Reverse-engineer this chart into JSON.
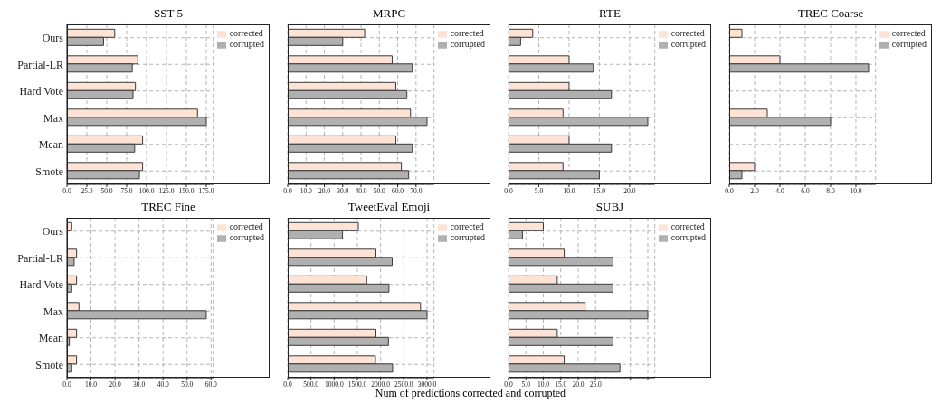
{
  "chart_data": [
    {
      "type": "bar",
      "orientation": "horizontal",
      "title": "SST-5",
      "categories": [
        "Ours",
        "Partial-LR",
        "Hard Vote",
        "Max",
        "Mean",
        "Smote"
      ],
      "series": [
        {
          "name": "corrected",
          "color": "#fde3d5",
          "values": [
            60,
            89,
            86,
            164,
            95,
            95
          ]
        },
        {
          "name": "corrupted",
          "color": "#b0b0b0",
          "values": [
            46,
            82,
            83,
            175,
            85,
            91
          ]
        }
      ],
      "xlim": [
        0,
        183.75
      ],
      "xticks": [
        {
          "value": 0,
          "label": "0.0"
        },
        {
          "value": 25,
          "label": "25.0"
        },
        {
          "value": 50,
          "label": "50.0"
        },
        {
          "value": 75,
          "label": "75.0"
        },
        {
          "value": 100,
          "label": "100.0"
        },
        {
          "value": 125,
          "label": "125.0"
        },
        {
          "value": 150,
          "label": "150.0"
        },
        {
          "value": 175,
          "label": "175.0"
        }
      ],
      "grid": true,
      "legend": "top right"
    },
    {
      "type": "bar",
      "orientation": "horizontal",
      "title": "MRPC",
      "categories": [
        null,
        null,
        null,
        null,
        null,
        null
      ],
      "series": [
        {
          "name": "corrected",
          "color": "#fde3d5",
          "values": [
            42,
            57,
            59,
            67,
            59,
            62
          ]
        },
        {
          "name": "corrupted",
          "color": "#b0b0b0",
          "values": [
            30,
            68,
            65,
            76,
            68,
            66
          ]
        }
      ],
      "xlim": [
        0,
        79.8
      ],
      "xticks": [
        {
          "value": 0,
          "label": "0.0"
        },
        {
          "value": 10,
          "label": "10.0"
        },
        {
          "value": 20,
          "label": "20.0"
        },
        {
          "value": 30,
          "label": "30.0"
        },
        {
          "value": 40,
          "label": "40.0"
        },
        {
          "value": 50,
          "label": "50.0"
        },
        {
          "value": 60,
          "label": "60.0"
        },
        {
          "value": 70,
          "label": "70.0"
        }
      ],
      "grid": true,
      "legend": "top right",
      "tick_labels": "x"
    },
    {
      "type": "bar",
      "orientation": "horizontal",
      "title": "RTE",
      "categories": [
        null,
        null,
        null,
        null,
        null,
        null
      ],
      "series": [
        {
          "name": "corrected",
          "color": "#fde3d5",
          "values": [
            4,
            10,
            10,
            9,
            10,
            9
          ]
        },
        {
          "name": "corrupted",
          "color": "#b0b0b0",
          "values": [
            2,
            14,
            17,
            23,
            17,
            15
          ]
        }
      ],
      "xlim": [
        0,
        24.15
      ],
      "xticks": [
        {
          "value": 0,
          "label": "0.0"
        },
        {
          "value": 5,
          "label": "5.0"
        },
        {
          "value": 10,
          "label": "10.0"
        },
        {
          "value": 15,
          "label": "15.0"
        },
        {
          "value": 20,
          "label": "20.0"
        }
      ],
      "grid": true,
      "legend": "top right",
      "tick_labels": "x"
    },
    {
      "type": "bar",
      "orientation": "horizontal",
      "title": "TREC Coarse",
      "categories": [
        null,
        null,
        null,
        null,
        null,
        null
      ],
      "series": [
        {
          "name": "corrected",
          "color": "#fde3d5",
          "values": [
            1,
            4,
            0,
            3,
            0,
            2
          ]
        },
        {
          "name": "corrupted",
          "color": "#b0b0b0",
          "values": [
            0,
            11,
            0,
            8,
            0,
            1
          ]
        }
      ],
      "xlim": [
        0,
        11.55
      ],
      "xticks": [
        {
          "value": 0,
          "label": "0.0"
        },
        {
          "value": 2,
          "label": "2.0"
        },
        {
          "value": 4,
          "label": "4.0"
        },
        {
          "value": 6,
          "label": "6.0"
        },
        {
          "value": 8,
          "label": "8.0"
        },
        {
          "value": 10,
          "label": "10.0"
        }
      ],
      "grid": true,
      "legend": "top right",
      "tick_labels": "x"
    },
    {
      "type": "bar",
      "orientation": "horizontal",
      "title": "TREC Fine",
      "categories": [
        "Ours",
        "Partial-LR",
        "Hard Vote",
        "Max",
        "Mean",
        "Smote"
      ],
      "series": [
        {
          "name": "corrected",
          "color": "#fde3d5",
          "values": [
            2,
            4,
            4,
            5,
            4,
            4
          ]
        },
        {
          "name": "corrupted",
          "color": "#b0b0b0",
          "values": [
            0,
            3,
            2,
            58,
            1,
            2
          ]
        }
      ],
      "xlim": [
        0,
        60.9
      ],
      "xticks": [
        {
          "value": 0,
          "label": "0.0"
        },
        {
          "value": 10,
          "label": "10.0"
        },
        {
          "value": 20,
          "label": "20.0"
        },
        {
          "value": 30,
          "label": "30.0"
        },
        {
          "value": 40,
          "label": "40.0"
        },
        {
          "value": 50,
          "label": "50.0"
        },
        {
          "value": 60,
          "label": "60.0"
        }
      ],
      "grid": true,
      "legend": "top right"
    },
    {
      "type": "bar",
      "orientation": "horizontal",
      "title": "TweetEval Emoji",
      "xlabel": "Num of predictions corrected and corrupted",
      "categories": [
        null,
        null,
        null,
        null,
        null,
        null
      ],
      "series": [
        {
          "name": "corrected",
          "color": "#fde3d5",
          "values": [
            1520,
            1900,
            1700,
            2860,
            1900,
            1890
          ]
        },
        {
          "name": "corrupted",
          "color": "#b0b0b0",
          "values": [
            1180,
            2250,
            2180,
            3000,
            2170,
            2260
          ]
        }
      ],
      "xlim": [
        0,
        3150
      ],
      "xticks": [
        {
          "value": 0,
          "label": "0.0"
        },
        {
          "value": 500,
          "label": "500.0"
        },
        {
          "value": 1000,
          "label": "1000.0"
        },
        {
          "value": 1500,
          "label": "1500.0"
        },
        {
          "value": 2000,
          "label": "2000.0"
        },
        {
          "value": 2500,
          "label": "2500.0"
        },
        {
          "value": 3000,
          "label": "3000.0"
        }
      ],
      "grid": true,
      "legend": "top right",
      "tick_labels": "x"
    },
    {
      "type": "bar",
      "orientation": "horizontal",
      "title": "SUBJ",
      "categories": [
        null,
        null,
        null,
        null,
        null,
        null
      ],
      "series": [
        {
          "name": "corrected",
          "color": "#fde3d5",
          "values": [
            10,
            16,
            14,
            22,
            14,
            16
          ]
        },
        {
          "name": "corrupted",
          "color": "#b0b0b0",
          "values": [
            4,
            30,
            30,
            40,
            30,
            32
          ]
        }
      ],
      "xlim": [
        0,
        42
      ],
      "xticks": [
        {
          "value": 0,
          "label": "0.0"
        },
        {
          "value": 5,
          "label": "5.0"
        },
        {
          "value": 10,
          "label": "10.0"
        },
        {
          "value": 15,
          "label": "15.0"
        },
        {
          "value": 20,
          "label": "20.0"
        },
        {
          "value": 25,
          "label": "25.0"
        },
        {
          "value": 30,
          "label": null
        },
        {
          "value": 35,
          "label": null
        },
        {
          "value": 40,
          "label": null
        }
      ],
      "grid": true,
      "legend": "top right",
      "tick_labels": "x"
    }
  ]
}
